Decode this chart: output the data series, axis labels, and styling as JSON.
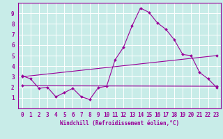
{
  "xlabel": "Windchill (Refroidissement éolien,°C)",
  "background_color": "#c8ece8",
  "grid_color": "#ffffff",
  "line_color": "#990099",
  "xlim": [
    -0.5,
    23.5
  ],
  "ylim": [
    0,
    10
  ],
  "xticks": [
    0,
    1,
    2,
    3,
    4,
    5,
    6,
    7,
    8,
    9,
    10,
    11,
    12,
    13,
    14,
    15,
    16,
    17,
    18,
    19,
    20,
    21,
    22,
    23
  ],
  "yticks": [
    1,
    2,
    3,
    4,
    5,
    6,
    7,
    8,
    9
  ],
  "line1_x": [
    0,
    1,
    2,
    3,
    4,
    5,
    6,
    7,
    8,
    9,
    10,
    11,
    12,
    13,
    14,
    15,
    16,
    17,
    18,
    19,
    20,
    21,
    22,
    23
  ],
  "line1_y": [
    3.1,
    2.8,
    1.9,
    2.0,
    1.1,
    1.5,
    1.9,
    1.1,
    0.85,
    1.95,
    2.1,
    4.6,
    5.8,
    7.8,
    9.5,
    9.1,
    8.1,
    7.5,
    6.5,
    5.1,
    5.0,
    3.4,
    2.8,
    2.0
  ],
  "line2_x": [
    0,
    23
  ],
  "line2_y": [
    2.15,
    2.1
  ],
  "line3_x": [
    0,
    23
  ],
  "line3_y": [
    3.0,
    5.0
  ],
  "xlabel_fontsize": 5.5,
  "tick_fontsize": 5.5
}
